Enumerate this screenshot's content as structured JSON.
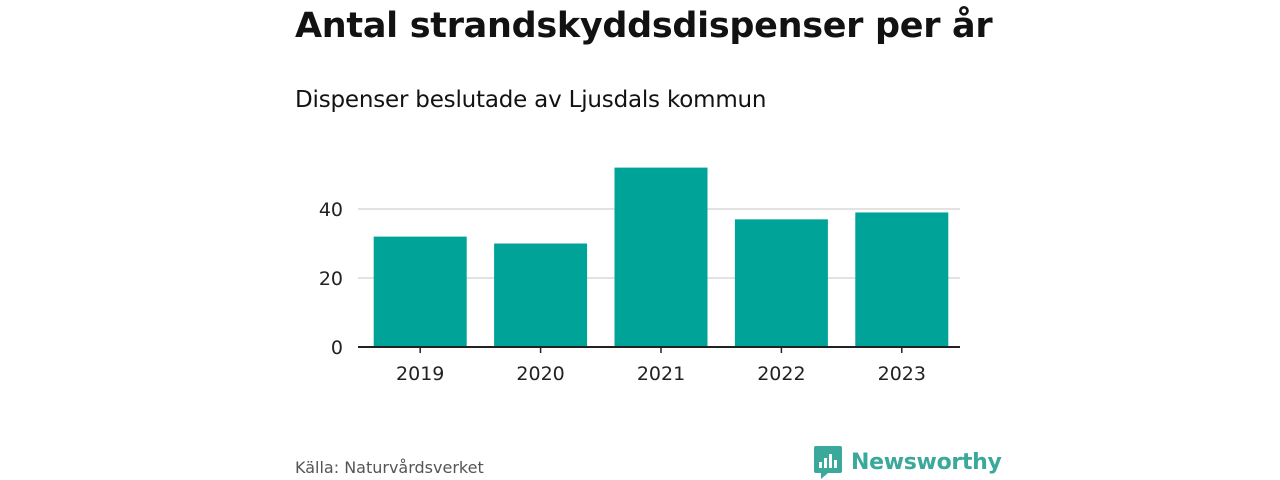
{
  "title": "Antal strandskyddsdispenser per år",
  "subtitle": "Dispenser beslutade av Ljusdals kommun",
  "source": "Källa: Naturvårdsverket",
  "brand": "Newsworthy",
  "colors": {
    "bar": "#00a398",
    "grid": "#d9d9d9",
    "axis": "#222222",
    "brand": "#3aa89a"
  },
  "chart_data": {
    "type": "bar",
    "title": "Antal strandskyddsdispenser per år",
    "subtitle": "Dispenser beslutade av Ljusdals kommun",
    "xlabel": "",
    "ylabel": "",
    "categories": [
      "2019",
      "2020",
      "2021",
      "2022",
      "2023"
    ],
    "values": [
      32,
      30,
      52,
      37,
      39
    ],
    "yticks": [
      0,
      20,
      40
    ],
    "ylim": [
      0,
      52
    ],
    "grid": true,
    "legend": "none"
  }
}
